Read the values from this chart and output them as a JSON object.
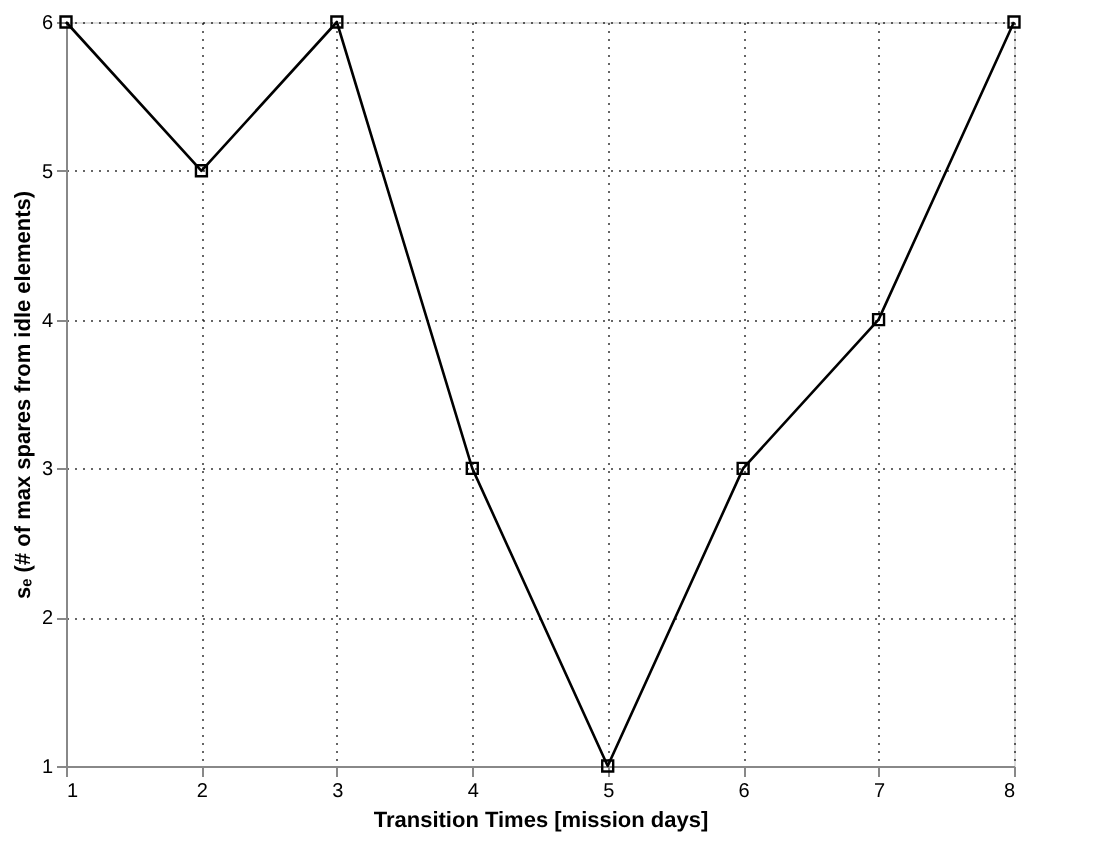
{
  "chart_data": {
    "type": "line",
    "xlabel": "Transition Times [mission days]",
    "ylabel": "sₑ (# of max spares from idle elements)",
    "x": [
      1,
      2,
      3,
      4,
      5,
      6,
      7,
      8
    ],
    "series": [
      {
        "color": "#000000",
        "values": [
          6,
          5,
          6,
          3,
          1,
          3,
          4,
          6
        ]
      }
    ],
    "xlim": [
      1,
      8
    ],
    "xticks": [
      1,
      2,
      3,
      4,
      5,
      6,
      7,
      8
    ],
    "ylim": [
      1,
      6
    ],
    "yticks": [
      1,
      2,
      3,
      4,
      5,
      6
    ],
    "grid": true,
    "marker": "square",
    "line_style": "solid"
  }
}
